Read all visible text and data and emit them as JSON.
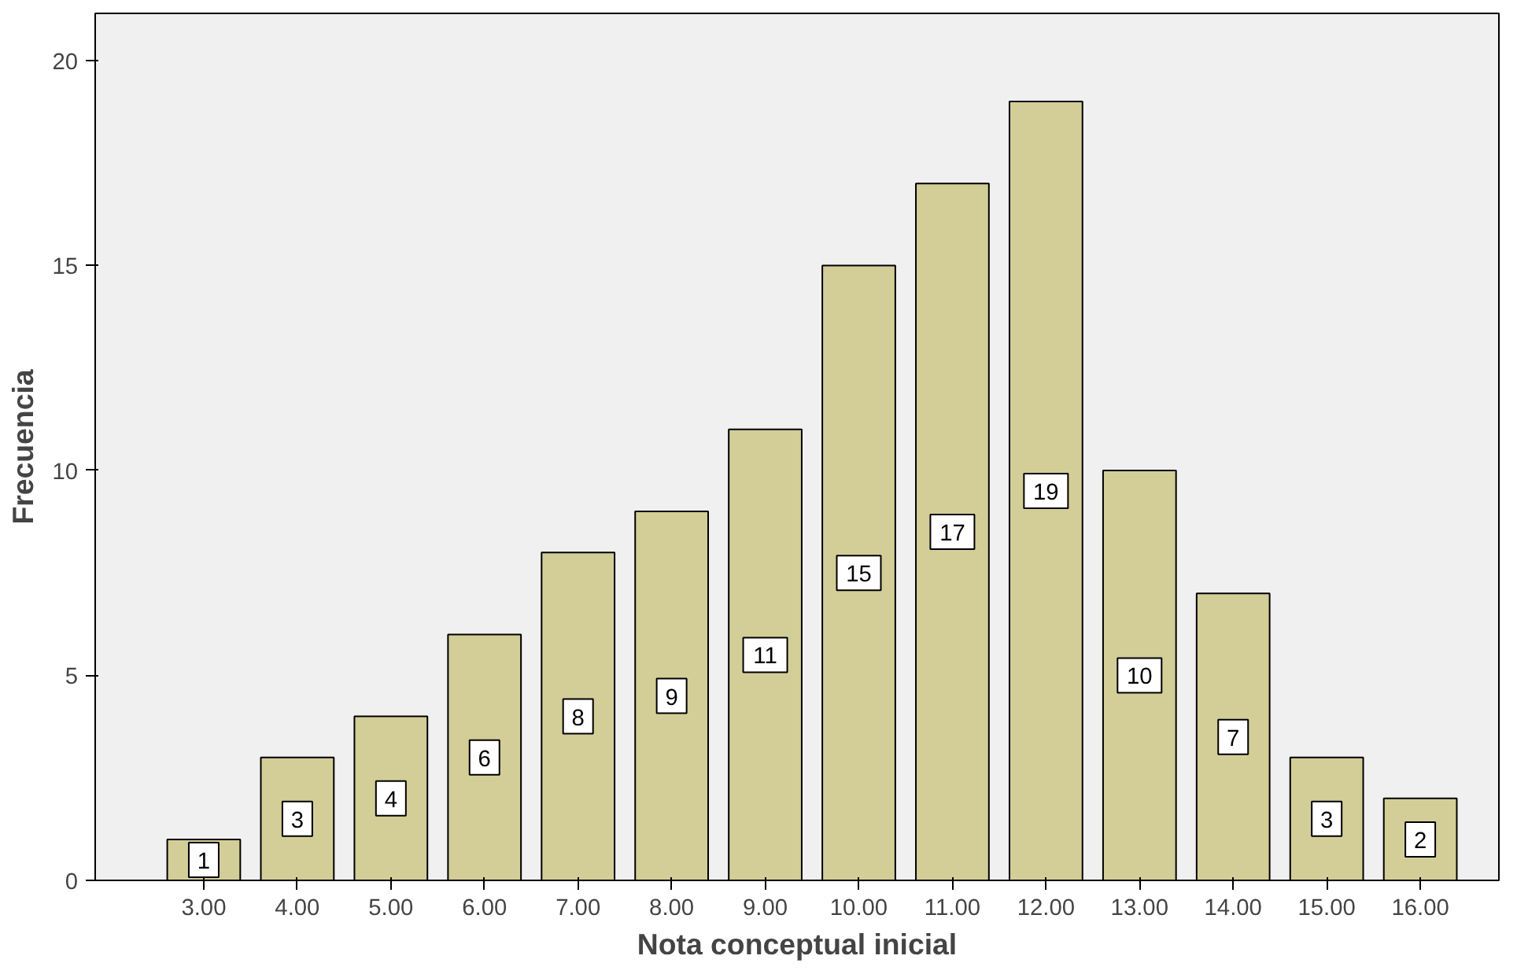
{
  "chart_data": {
    "type": "bar",
    "xlabel": "Nota conceptual inicial",
    "ylabel": "Frecuencia",
    "categories": [
      "3.00",
      "4.00",
      "5.00",
      "6.00",
      "7.00",
      "8.00",
      "9.00",
      "10.00",
      "11.00",
      "12.00",
      "13.00",
      "14.00",
      "15.00",
      "16.00"
    ],
    "values": [
      1,
      3,
      4,
      6,
      8,
      9,
      11,
      15,
      17,
      19,
      10,
      7,
      3,
      2
    ],
    "color": "#d3ce97",
    "ylim": [
      0,
      21.15
    ],
    "yticks": [
      0,
      5,
      10,
      15,
      20
    ],
    "grid": false,
    "data_labels": true
  }
}
